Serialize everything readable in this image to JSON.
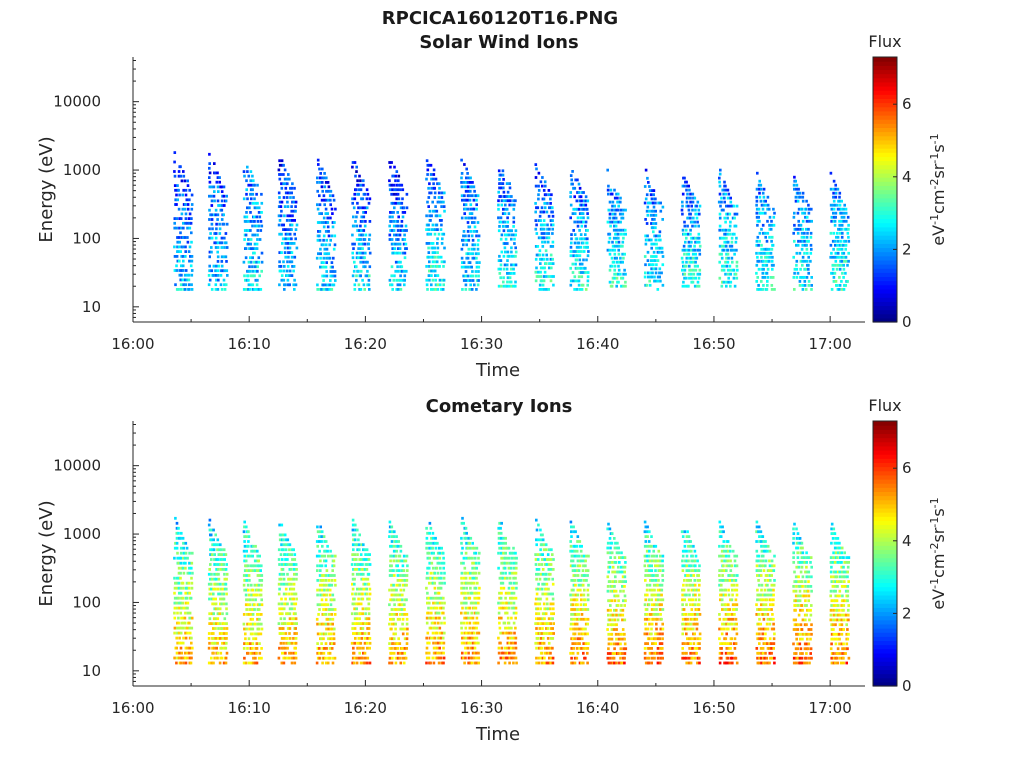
{
  "figure_title": "RPCICA160120T16.PNG",
  "chart_data": [
    {
      "type": "heatmap",
      "title": "Solar Wind Ions",
      "xlabel": "Time",
      "ylabel": "Energy (eV)",
      "yscale": "log",
      "ylim": [
        6,
        45000
      ],
      "xlim": [
        "16:00",
        "17:03"
      ],
      "x_tick_labels": [
        "16:00",
        "16:10",
        "16:20",
        "16:30",
        "16:40",
        "16:50",
        "17:00"
      ],
      "y_tick_labels": [
        "10",
        "100",
        "1000",
        "10000"
      ],
      "colorbar": {
        "title": "Flux",
        "label": "eV-1cm-2sr-1s-1",
        "ticks": [
          "0",
          "2",
          "4",
          "6"
        ],
        "range": [
          0,
          7.3
        ],
        "colormap": "jet"
      },
      "sweeps": [
        {
          "start": "16:03.5",
          "e_min": 18,
          "e_max": 1800,
          "flux_low": 2.4,
          "flux_high": 1.0
        },
        {
          "start": "16:06.5",
          "e_min": 18,
          "e_max": 1700,
          "flux_low": 2.4,
          "flux_high": 1.2
        },
        {
          "start": "16:09.5",
          "e_min": 18,
          "e_max": 1500,
          "flux_low": 2.6,
          "flux_high": 1.6
        },
        {
          "start": "16:12.5",
          "e_min": 18,
          "e_max": 1600,
          "flux_low": 2.4,
          "flux_high": 1.0
        },
        {
          "start": "16:15.8",
          "e_min": 18,
          "e_max": 1400,
          "flux_low": 2.6,
          "flux_high": 1.0
        },
        {
          "start": "16:18.8",
          "e_min": 18,
          "e_max": 1500,
          "flux_low": 2.8,
          "flux_high": 0.8
        },
        {
          "start": "16:22.0",
          "e_min": 18,
          "e_max": 1500,
          "flux_low": 2.6,
          "flux_high": 0.8
        },
        {
          "start": "16:25.2",
          "e_min": 18,
          "e_max": 1600,
          "flux_low": 3.0,
          "flux_high": 1.2
        },
        {
          "start": "16:28.2",
          "e_min": 18,
          "e_max": 1400,
          "flux_low": 2.6,
          "flux_high": 1.4
        },
        {
          "start": "16:31.4",
          "e_min": 20,
          "e_max": 1300,
          "flux_low": 2.8,
          "flux_high": 1.4
        },
        {
          "start": "16:34.6",
          "e_min": 18,
          "e_max": 1200,
          "flux_low": 3.0,
          "flux_high": 1.2
        },
        {
          "start": "16:37.6",
          "e_min": 18,
          "e_max": 1100,
          "flux_low": 3.0,
          "flux_high": 1.2
        },
        {
          "start": "16:40.8",
          "e_min": 20,
          "e_max": 1000,
          "flux_low": 3.0,
          "flux_high": 1.4
        },
        {
          "start": "16:44.0",
          "e_min": 18,
          "e_max": 1000,
          "flux_low": 2.8,
          "flux_high": 1.4
        },
        {
          "start": "16:47.2",
          "e_min": 20,
          "e_max": 1000,
          "flux_low": 3.0,
          "flux_high": 1.4
        },
        {
          "start": "16:50.4",
          "e_min": 20,
          "e_max": 1000,
          "flux_low": 3.0,
          "flux_high": 1.6
        },
        {
          "start": "16:53.6",
          "e_min": 18,
          "e_max": 900,
          "flux_low": 2.8,
          "flux_high": 1.6
        },
        {
          "start": "16:56.8",
          "e_min": 18,
          "e_max": 900,
          "flux_low": 2.8,
          "flux_high": 1.6
        },
        {
          "start": "17:00.0",
          "e_min": 18,
          "e_max": 900,
          "flux_low": 3.0,
          "flux_high": 1.6
        }
      ]
    },
    {
      "type": "heatmap",
      "title": "Cometary Ions",
      "xlabel": "Time",
      "ylabel": "Energy (eV)",
      "yscale": "log",
      "ylim": [
        6,
        45000
      ],
      "xlim": [
        "16:00",
        "17:03"
      ],
      "x_tick_labels": [
        "16:00",
        "16:10",
        "16:20",
        "16:30",
        "16:40",
        "16:50",
        "17:00"
      ],
      "y_tick_labels": [
        "10",
        "100",
        "1000",
        "10000"
      ],
      "colorbar": {
        "title": "Flux",
        "label": "eV-1cm-2sr-1s-1",
        "ticks": [
          "0",
          "2",
          "4",
          "6"
        ],
        "range": [
          0,
          7.3
        ],
        "colormap": "jet"
      },
      "sweeps": [
        {
          "start": "16:03.5",
          "e_min": 13,
          "e_max": 1700,
          "flux_low": 5.2,
          "flux_high": 2.4
        },
        {
          "start": "16:06.5",
          "e_min": 13,
          "e_max": 1600,
          "flux_low": 5.2,
          "flux_high": 2.4
        },
        {
          "start": "16:09.5",
          "e_min": 13,
          "e_max": 1500,
          "flux_low": 5.2,
          "flux_high": 2.6
        },
        {
          "start": "16:12.5",
          "e_min": 13,
          "e_max": 1600,
          "flux_low": 5.2,
          "flux_high": 2.6
        },
        {
          "start": "16:15.8",
          "e_min": 13,
          "e_max": 1500,
          "flux_low": 5.3,
          "flux_high": 2.6
        },
        {
          "start": "16:18.8",
          "e_min": 13,
          "e_max": 1600,
          "flux_low": 5.3,
          "flux_high": 2.6
        },
        {
          "start": "16:22.0",
          "e_min": 13,
          "e_max": 1500,
          "flux_low": 5.3,
          "flux_high": 2.6
        },
        {
          "start": "16:25.2",
          "e_min": 13,
          "e_max": 1700,
          "flux_low": 5.4,
          "flux_high": 2.6
        },
        {
          "start": "16:28.2",
          "e_min": 13,
          "e_max": 1700,
          "flux_low": 5.4,
          "flux_high": 2.6
        },
        {
          "start": "16:31.4",
          "e_min": 13,
          "e_max": 1700,
          "flux_low": 5.4,
          "flux_high": 2.6
        },
        {
          "start": "16:34.6",
          "e_min": 13,
          "e_max": 1600,
          "flux_low": 5.4,
          "flux_high": 2.6
        },
        {
          "start": "16:37.6",
          "e_min": 13,
          "e_max": 1500,
          "flux_low": 5.6,
          "flux_high": 2.6
        },
        {
          "start": "16:40.8",
          "e_min": 13,
          "e_max": 1400,
          "flux_low": 5.6,
          "flux_high": 2.6
        },
        {
          "start": "16:44.0",
          "e_min": 13,
          "e_max": 1500,
          "flux_low": 5.6,
          "flux_high": 2.6
        },
        {
          "start": "16:47.2",
          "e_min": 13,
          "e_max": 1500,
          "flux_low": 5.6,
          "flux_high": 2.6
        },
        {
          "start": "16:50.4",
          "e_min": 13,
          "e_max": 1500,
          "flux_low": 5.7,
          "flux_high": 2.6
        },
        {
          "start": "16:53.6",
          "e_min": 13,
          "e_max": 1500,
          "flux_low": 5.7,
          "flux_high": 2.6
        },
        {
          "start": "16:56.8",
          "e_min": 13,
          "e_max": 1400,
          "flux_low": 5.7,
          "flux_high": 2.6
        },
        {
          "start": "17:00.0",
          "e_min": 13,
          "e_max": 1400,
          "flux_low": 5.6,
          "flux_high": 2.6
        }
      ]
    }
  ]
}
